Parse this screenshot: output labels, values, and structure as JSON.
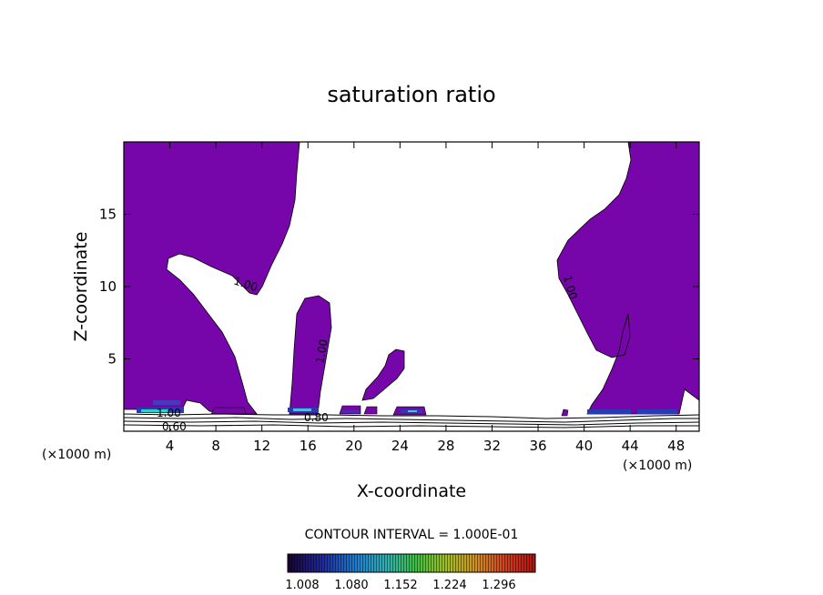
{
  "chart_data": {
    "type": "heatmap",
    "title": "saturation ratio",
    "xlabel": "X-coordinate",
    "ylabel": "Z-coordinate",
    "x_unit": "(×1000 m)",
    "z_unit": "(×1000 m)",
    "xlim": [
      0,
      50
    ],
    "ylim": [
      0,
      20
    ],
    "x_ticks": [
      4,
      8,
      12,
      16,
      20,
      24,
      28,
      32,
      36,
      40,
      44,
      48
    ],
    "y_ticks": [
      5,
      10,
      15
    ],
    "contour_interval_text": "CONTOUR INTERVAL = 1.000E-01",
    "contour_labels": [
      "1.00",
      "1.00",
      "1.00",
      "1.00",
      "0.80",
      "0.60"
    ],
    "colorbar": {
      "tick_labels": [
        "1.008",
        "1.080",
        "1.152",
        "1.224",
        "1.296"
      ],
      "colors": [
        "#1a0030",
        "#1f2a9c",
        "#1f7fd0",
        "#2fb0b0",
        "#3fbf40",
        "#a0c020",
        "#d09020",
        "#d04020",
        "#b01010"
      ]
    },
    "saturated_fill_color": "#7606a9"
  }
}
